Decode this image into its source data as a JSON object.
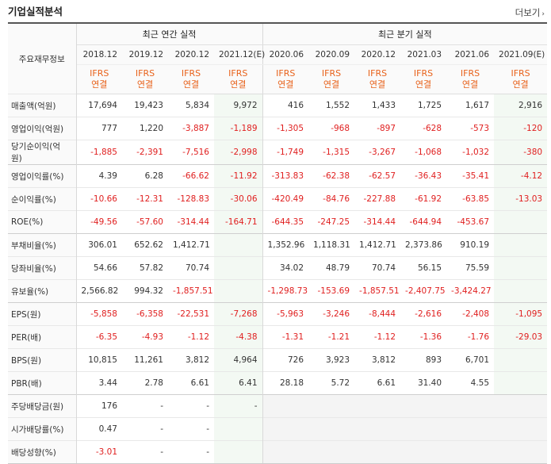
{
  "header": {
    "title": "기업실적분석",
    "more_label": "더보기"
  },
  "table": {
    "corner_label": "주요재무정보",
    "annual_group": "최근 연간 실적",
    "quarter_group": "최근 분기 실적",
    "annual_periods": [
      "2018.12",
      "2019.12",
      "2020.12",
      "2021.12(E)"
    ],
    "quarter_periods": [
      "2020.06",
      "2020.09",
      "2020.12",
      "2021.03",
      "2021.06",
      "2021.09(E)"
    ],
    "standard_top": "IFRS",
    "standard_bottom": "연결",
    "rows": [
      {
        "label": "매출액(억원)",
        "values": [
          "17,694",
          "19,423",
          "5,834",
          "9,972",
          "416",
          "1,552",
          "1,433",
          "1,725",
          "1,617",
          "2,916"
        ]
      },
      {
        "label": "영업이익(억원)",
        "values": [
          "777",
          "1,220",
          "-3,887",
          "-1,189",
          "-1,305",
          "-968",
          "-897",
          "-628",
          "-573",
          "-120"
        ]
      },
      {
        "label": "당기순이익(억원)",
        "values": [
          "-1,885",
          "-2,391",
          "-7,516",
          "-2,998",
          "-1,749",
          "-1,315",
          "-3,267",
          "-1,068",
          "-1,032",
          "-380"
        ]
      },
      {
        "label": "영업이익률(%)",
        "values": [
          "4.39",
          "6.28",
          "-66.62",
          "-11.92",
          "-313.83",
          "-62.38",
          "-62.57",
          "-36.43",
          "-35.41",
          "-4.12"
        ]
      },
      {
        "label": "순이익률(%)",
        "values": [
          "-10.66",
          "-12.31",
          "-128.83",
          "-30.06",
          "-420.49",
          "-84.76",
          "-227.88",
          "-61.92",
          "-63.85",
          "-13.03"
        ]
      },
      {
        "label": "ROE(%)",
        "values": [
          "-49.56",
          "-57.60",
          "-314.44",
          "-164.71",
          "-644.35",
          "-247.25",
          "-314.44",
          "-644.94",
          "-453.67",
          ""
        ]
      },
      {
        "label": "부채비율(%)",
        "values": [
          "306.01",
          "652.62",
          "1,412.71",
          "",
          "1,352.96",
          "1,118.31",
          "1,412.71",
          "2,373.86",
          "910.19",
          ""
        ]
      },
      {
        "label": "당좌비율(%)",
        "values": [
          "54.66",
          "57.82",
          "70.74",
          "",
          "34.02",
          "48.79",
          "70.74",
          "56.15",
          "75.59",
          ""
        ]
      },
      {
        "label": "유보율(%)",
        "values": [
          "2,566.82",
          "994.32",
          "-1,857.51",
          "",
          "-1,298.73",
          "-153.69",
          "-1,857.51",
          "-2,407.75",
          "-3,424.27",
          ""
        ]
      },
      {
        "label": "EPS(원)",
        "values": [
          "-5,858",
          "-6,358",
          "-22,531",
          "-7,268",
          "-5,963",
          "-3,246",
          "-8,444",
          "-2,616",
          "-2,408",
          "-1,095"
        ]
      },
      {
        "label": "PER(배)",
        "values": [
          "-6.35",
          "-4.93",
          "-1.12",
          "-4.38",
          "-1.31",
          "-1.21",
          "-1.12",
          "-1.36",
          "-1.76",
          "-29.03"
        ]
      },
      {
        "label": "BPS(원)",
        "values": [
          "10,815",
          "11,261",
          "3,812",
          "4,964",
          "726",
          "3,923",
          "3,812",
          "893",
          "6,701",
          ""
        ]
      },
      {
        "label": "PBR(배)",
        "values": [
          "3.44",
          "2.78",
          "6.61",
          "6.41",
          "28.18",
          "5.72",
          "6.61",
          "31.40",
          "4.55",
          ""
        ]
      },
      {
        "label": "주당배당금(원)",
        "values": [
          "176",
          "-",
          "-",
          "-",
          "",
          "",
          "",
          "",
          "",
          ""
        ]
      },
      {
        "label": "시가배당률(%)",
        "values": [
          "0.47",
          "-",
          "-",
          "",
          "",
          "",
          "",
          "",
          "",
          ""
        ]
      },
      {
        "label": "배당성향(%)",
        "values": [
          "-3.01",
          "-",
          "-",
          "",
          "",
          "",
          "",
          "",
          "",
          ""
        ]
      }
    ]
  }
}
